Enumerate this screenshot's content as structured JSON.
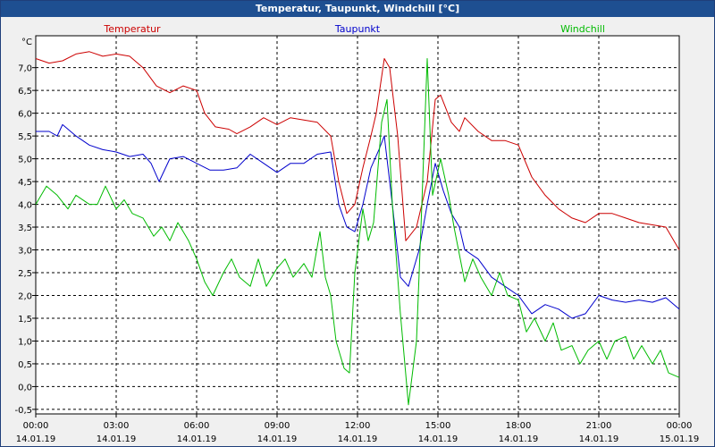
{
  "window_title": "Temperatur, Taupunkt, Windchill [°C]",
  "unit_label": "°C",
  "colors": {
    "temperature": "#cc0000",
    "dewpoint": "#0000cc",
    "windchill": "#00bb00",
    "grid": "#000000",
    "plot_bg": "#ffffff",
    "titlebar": "#1e4f91"
  },
  "chart_data": {
    "type": "line",
    "title": "Temperatur, Taupunkt, Windchill [°C]",
    "ylabel": "°C",
    "ylim": [
      -0.6,
      7.7
    ],
    "xlim": [
      0,
      24
    ],
    "y_ticks": [
      {
        "value": -0.5,
        "label": "-0,5"
      },
      {
        "value": 0.0,
        "label": "0,0"
      },
      {
        "value": 0.5,
        "label": "0,5"
      },
      {
        "value": 1.0,
        "label": "1,0"
      },
      {
        "value": 1.5,
        "label": "1,5"
      },
      {
        "value": 2.0,
        "label": "2,0"
      },
      {
        "value": 2.5,
        "label": "2,5"
      },
      {
        "value": 3.0,
        "label": "3,0"
      },
      {
        "value": 3.5,
        "label": "3,5"
      },
      {
        "value": 4.0,
        "label": "4,0"
      },
      {
        "value": 4.5,
        "label": "4,5"
      },
      {
        "value": 5.0,
        "label": "5,0"
      },
      {
        "value": 5.5,
        "label": "5,5"
      },
      {
        "value": 6.0,
        "label": "6,0"
      },
      {
        "value": 6.5,
        "label": "6,5"
      },
      {
        "value": 7.0,
        "label": "7,0"
      }
    ],
    "x_ticks": [
      {
        "value": 0,
        "time": "00:00",
        "date": "14.01.19"
      },
      {
        "value": 3,
        "time": "03:00",
        "date": "14.01.19"
      },
      {
        "value": 6,
        "time": "06:00",
        "date": "14.01.19"
      },
      {
        "value": 9,
        "time": "09:00",
        "date": "14.01.19"
      },
      {
        "value": 12,
        "time": "12:00",
        "date": "14.01.19"
      },
      {
        "value": 15,
        "time": "15:00",
        "date": "14.01.19"
      },
      {
        "value": 18,
        "time": "18:00",
        "date": "14.01.19"
      },
      {
        "value": 21,
        "time": "21:00",
        "date": "14.01.19"
      },
      {
        "value": 24,
        "time": "00:00",
        "date": "15.01.19"
      }
    ],
    "series": [
      {
        "name": "Temperatur",
        "key": "temperature",
        "points": [
          [
            0,
            7.2
          ],
          [
            0.5,
            7.1
          ],
          [
            1,
            7.15
          ],
          [
            1.5,
            7.3
          ],
          [
            2,
            7.35
          ],
          [
            2.5,
            7.25
          ],
          [
            3,
            7.3
          ],
          [
            3.5,
            7.25
          ],
          [
            4,
            7.0
          ],
          [
            4.5,
            6.6
          ],
          [
            5,
            6.45
          ],
          [
            5.5,
            6.6
          ],
          [
            6,
            6.5
          ],
          [
            6.3,
            6.0
          ],
          [
            6.7,
            5.7
          ],
          [
            7.2,
            5.65
          ],
          [
            7.5,
            5.55
          ],
          [
            8,
            5.7
          ],
          [
            8.5,
            5.9
          ],
          [
            9,
            5.75
          ],
          [
            9.5,
            5.9
          ],
          [
            10,
            5.85
          ],
          [
            10.5,
            5.8
          ],
          [
            11,
            5.5
          ],
          [
            11.3,
            4.5
          ],
          [
            11.6,
            3.8
          ],
          [
            11.9,
            4.0
          ],
          [
            12.2,
            4.8
          ],
          [
            12.5,
            5.5
          ],
          [
            12.7,
            6.0
          ],
          [
            13,
            7.2
          ],
          [
            13.2,
            7.0
          ],
          [
            13.5,
            5.5
          ],
          [
            13.8,
            3.2
          ],
          [
            14.2,
            3.5
          ],
          [
            14.6,
            4.5
          ],
          [
            14.9,
            6.3
          ],
          [
            15.1,
            6.4
          ],
          [
            15.5,
            5.8
          ],
          [
            15.8,
            5.6
          ],
          [
            16,
            5.9
          ],
          [
            16.5,
            5.6
          ],
          [
            17,
            5.4
          ],
          [
            17.5,
            5.4
          ],
          [
            18,
            5.3
          ],
          [
            18.5,
            4.6
          ],
          [
            19,
            4.2
          ],
          [
            19.5,
            3.9
          ],
          [
            20,
            3.7
          ],
          [
            20.5,
            3.6
          ],
          [
            21,
            3.8
          ],
          [
            21.5,
            3.8
          ],
          [
            22,
            3.7
          ],
          [
            22.5,
            3.6
          ],
          [
            23,
            3.55
          ],
          [
            23.5,
            3.5
          ],
          [
            24,
            3.0
          ]
        ]
      },
      {
        "name": "Taupunkt",
        "key": "dewpoint",
        "points": [
          [
            0,
            5.6
          ],
          [
            0.5,
            5.6
          ],
          [
            0.8,
            5.5
          ],
          [
            1,
            5.75
          ],
          [
            1.5,
            5.5
          ],
          [
            2,
            5.3
          ],
          [
            2.5,
            5.2
          ],
          [
            3,
            5.15
          ],
          [
            3.5,
            5.05
          ],
          [
            4,
            5.1
          ],
          [
            4.3,
            4.9
          ],
          [
            4.6,
            4.5
          ],
          [
            5,
            5.0
          ],
          [
            5.5,
            5.05
          ],
          [
            6,
            4.9
          ],
          [
            6.5,
            4.75
          ],
          [
            7,
            4.75
          ],
          [
            7.5,
            4.8
          ],
          [
            8,
            5.1
          ],
          [
            8.5,
            4.9
          ],
          [
            9,
            4.7
          ],
          [
            9.5,
            4.9
          ],
          [
            10,
            4.9
          ],
          [
            10.5,
            5.1
          ],
          [
            11,
            5.15
          ],
          [
            11.3,
            4.0
          ],
          [
            11.6,
            3.5
          ],
          [
            11.9,
            3.4
          ],
          [
            12.2,
            4.0
          ],
          [
            12.5,
            4.8
          ],
          [
            12.8,
            5.2
          ],
          [
            13,
            5.5
          ],
          [
            13.3,
            4.0
          ],
          [
            13.6,
            2.4
          ],
          [
            13.9,
            2.2
          ],
          [
            14.3,
            3.0
          ],
          [
            14.6,
            4.0
          ],
          [
            14.9,
            4.9
          ],
          [
            15.2,
            4.3
          ],
          [
            15.5,
            3.8
          ],
          [
            15.8,
            3.5
          ],
          [
            16,
            3.0
          ],
          [
            16.5,
            2.8
          ],
          [
            17,
            2.4
          ],
          [
            17.5,
            2.2
          ],
          [
            18,
            2.0
          ],
          [
            18.5,
            1.6
          ],
          [
            19,
            1.8
          ],
          [
            19.5,
            1.7
          ],
          [
            20,
            1.5
          ],
          [
            20.5,
            1.6
          ],
          [
            21,
            2.0
          ],
          [
            21.5,
            1.9
          ],
          [
            22,
            1.85
          ],
          [
            22.5,
            1.9
          ],
          [
            23,
            1.85
          ],
          [
            23.5,
            1.95
          ],
          [
            24,
            1.7
          ]
        ]
      },
      {
        "name": "Windchill",
        "key": "windchill",
        "points": [
          [
            0,
            4.0
          ],
          [
            0.4,
            4.4
          ],
          [
            0.8,
            4.2
          ],
          [
            1.2,
            3.9
          ],
          [
            1.5,
            4.2
          ],
          [
            2,
            4.0
          ],
          [
            2.3,
            4.0
          ],
          [
            2.6,
            4.4
          ],
          [
            3,
            3.9
          ],
          [
            3.3,
            4.1
          ],
          [
            3.6,
            3.8
          ],
          [
            4,
            3.7
          ],
          [
            4.4,
            3.3
          ],
          [
            4.7,
            3.5
          ],
          [
            5,
            3.2
          ],
          [
            5.3,
            3.6
          ],
          [
            5.7,
            3.2
          ],
          [
            6,
            2.8
          ],
          [
            6.3,
            2.3
          ],
          [
            6.6,
            2.0
          ],
          [
            7,
            2.5
          ],
          [
            7.3,
            2.8
          ],
          [
            7.6,
            2.4
          ],
          [
            8,
            2.2
          ],
          [
            8.3,
            2.8
          ],
          [
            8.6,
            2.2
          ],
          [
            9,
            2.6
          ],
          [
            9.3,
            2.8
          ],
          [
            9.6,
            2.4
          ],
          [
            10,
            2.7
          ],
          [
            10.3,
            2.4
          ],
          [
            10.6,
            3.4
          ],
          [
            10.8,
            2.4
          ],
          [
            11,
            2.0
          ],
          [
            11.2,
            1.0
          ],
          [
            11.5,
            0.4
          ],
          [
            11.7,
            0.3
          ],
          [
            11.9,
            2.5
          ],
          [
            12.2,
            3.9
          ],
          [
            12.4,
            3.2
          ],
          [
            12.6,
            3.6
          ],
          [
            12.9,
            5.8
          ],
          [
            13.1,
            6.3
          ],
          [
            13.3,
            4.0
          ],
          [
            13.6,
            1.6
          ],
          [
            13.9,
            -0.4
          ],
          [
            14.2,
            1.0
          ],
          [
            14.4,
            4.0
          ],
          [
            14.6,
            7.2
          ],
          [
            14.8,
            4.2
          ],
          [
            15.1,
            5.0
          ],
          [
            15.4,
            4.2
          ],
          [
            15.6,
            3.5
          ],
          [
            15.8,
            2.9
          ],
          [
            16,
            2.3
          ],
          [
            16.3,
            2.8
          ],
          [
            16.6,
            2.4
          ],
          [
            17,
            2.0
          ],
          [
            17.3,
            2.5
          ],
          [
            17.6,
            2.0
          ],
          [
            18,
            1.9
          ],
          [
            18.3,
            1.2
          ],
          [
            18.6,
            1.5
          ],
          [
            19,
            1.0
          ],
          [
            19.3,
            1.4
          ],
          [
            19.6,
            0.8
          ],
          [
            20,
            0.9
          ],
          [
            20.3,
            0.5
          ],
          [
            20.6,
            0.8
          ],
          [
            21,
            1.0
          ],
          [
            21.3,
            0.6
          ],
          [
            21.6,
            1.0
          ],
          [
            22,
            1.1
          ],
          [
            22.3,
            0.6
          ],
          [
            22.6,
            0.9
          ],
          [
            23,
            0.5
          ],
          [
            23.3,
            0.8
          ],
          [
            23.6,
            0.3
          ],
          [
            24,
            0.2
          ]
        ]
      }
    ],
    "legend": [
      {
        "label": "Temperatur",
        "key": "temperature",
        "position": "top-left"
      },
      {
        "label": "Taupunkt",
        "key": "dewpoint",
        "position": "top-center"
      },
      {
        "label": "Windchill",
        "key": "windchill",
        "position": "top-right"
      }
    ]
  }
}
